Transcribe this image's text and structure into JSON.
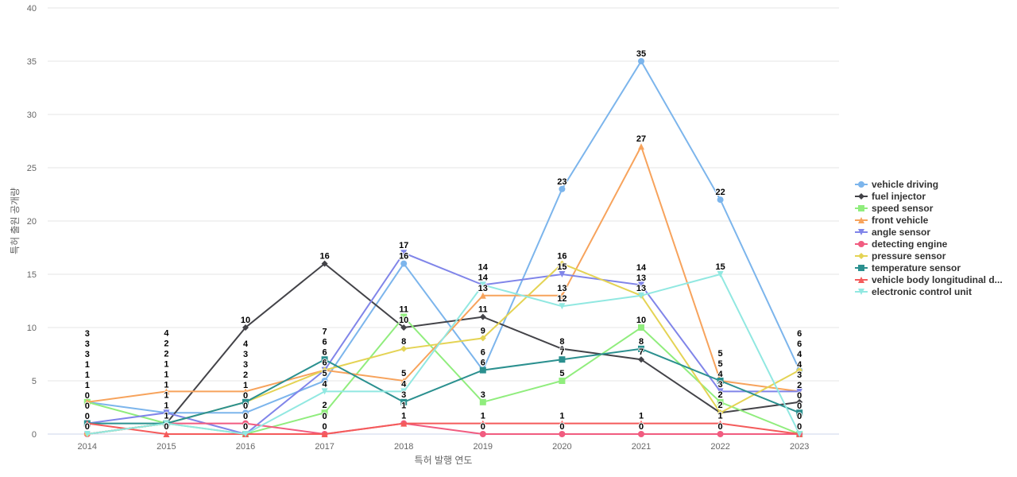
{
  "chart_data": {
    "type": "line",
    "title": "",
    "xlabel": "특허 발행 연도",
    "ylabel": "특허 출원 공개량",
    "categories": [
      "2014",
      "2015",
      "2016",
      "2017",
      "2018",
      "2019",
      "2020",
      "2021",
      "2022",
      "2023"
    ],
    "ylim": [
      0,
      40
    ],
    "yticks": [
      0,
      5,
      10,
      15,
      20,
      25,
      30,
      35,
      40
    ],
    "grid": true,
    "legend_position": "right",
    "series": [
      {
        "name": "vehicle driving",
        "color": "#7cb5ec",
        "marker": "circle",
        "values": [
          3,
          2,
          2,
          5,
          16,
          6,
          23,
          35,
          22,
          6
        ]
      },
      {
        "name": "fuel injector",
        "color": "#434348",
        "marker": "diamond",
        "values": [
          0,
          1,
          10,
          16,
          10,
          11,
          8,
          7,
          2,
          3
        ]
      },
      {
        "name": "speed sensor",
        "color": "#90ed7d",
        "marker": "square",
        "values": [
          3,
          1,
          0,
          2,
          11,
          3,
          5,
          10,
          3,
          0
        ]
      },
      {
        "name": "front vehicle",
        "color": "#f7a35c",
        "marker": "triangle",
        "values": [
          3,
          4,
          4,
          6,
          5,
          13,
          13,
          27,
          5,
          4
        ]
      },
      {
        "name": "angle sensor",
        "color": "#8085e9",
        "marker": "triangle-down",
        "values": [
          1,
          2,
          0,
          6,
          17,
          14,
          15,
          14,
          4,
          4
        ]
      },
      {
        "name": "detecting engine",
        "color": "#f15c80",
        "marker": "circle",
        "values": [
          0,
          1,
          1,
          0,
          1,
          0,
          0,
          0,
          0,
          0
        ]
      },
      {
        "name": "pressure sensor",
        "color": "#e4d354",
        "marker": "diamond",
        "values": [
          0,
          1,
          3,
          6,
          8,
          9,
          16,
          13,
          2,
          6
        ]
      },
      {
        "name": "temperature sensor",
        "color": "#2b908f",
        "marker": "square",
        "values": [
          1,
          1,
          3,
          7,
          3,
          6,
          7,
          8,
          5,
          2
        ]
      },
      {
        "name": "vehicle body longitudinal d...",
        "color": "#f45b5b",
        "marker": "triangle",
        "values": [
          1,
          0,
          0,
          0,
          1,
          1,
          1,
          1,
          1,
          0
        ]
      },
      {
        "name": "electronic control unit",
        "color": "#91e8e1",
        "marker": "triangle-down",
        "values": [
          0,
          1,
          0,
          4,
          4,
          14,
          12,
          13,
          15,
          0
        ]
      }
    ]
  }
}
